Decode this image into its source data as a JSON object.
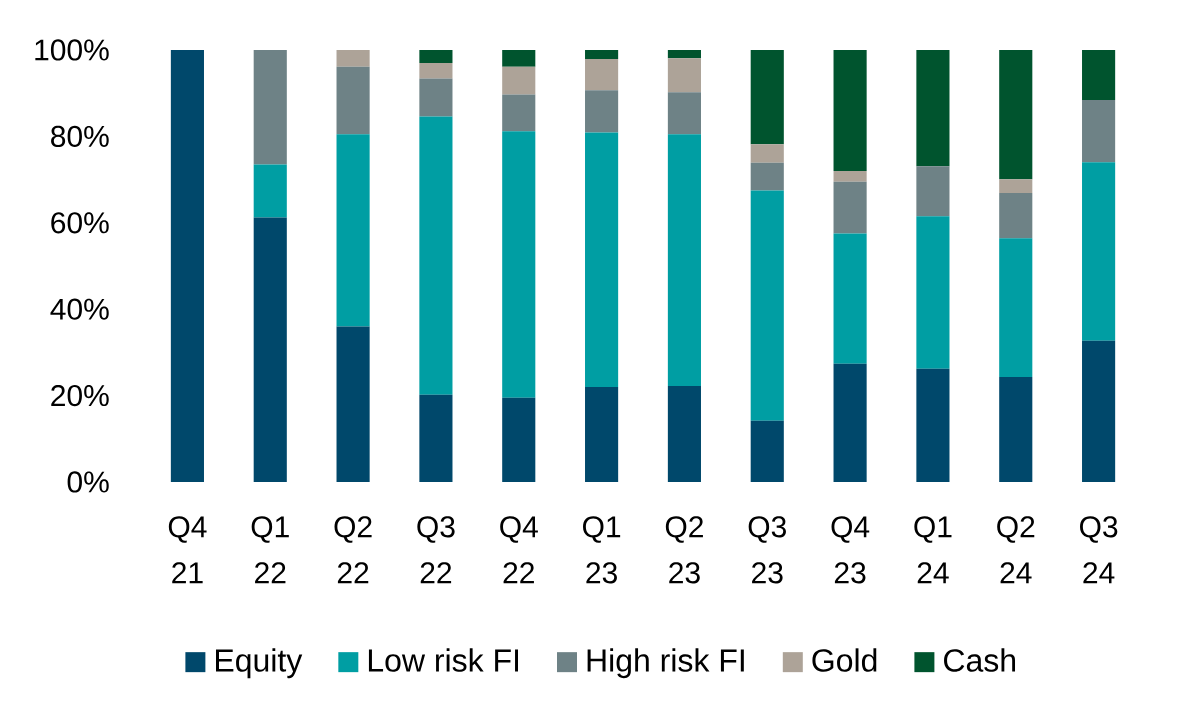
{
  "chart_data": {
    "type": "bar",
    "stacked": true,
    "categories": [
      "Q4 21",
      "Q1 22",
      "Q2 22",
      "Q3 22",
      "Q4 22",
      "Q1 23",
      "Q2 23",
      "Q3 23",
      "Q4 23",
      "Q1 24",
      "Q2 24",
      "Q3 24"
    ],
    "series": [
      {
        "name": "Equity",
        "color": "#00486b",
        "values": [
          100,
          61.2,
          36.0,
          20.2,
          19.5,
          22.0,
          22.2,
          14.2,
          27.4,
          26.2,
          24.3,
          32.7
        ]
      },
      {
        "name": "Low risk FI",
        "color": "#009ea3",
        "values": [
          0,
          12.3,
          44.5,
          64.4,
          61.7,
          58.9,
          58.3,
          53.3,
          30.1,
          35.3,
          32.1,
          41.3
        ]
      },
      {
        "name": "High risk FI",
        "color": "#6e8286",
        "values": [
          0,
          26.5,
          15.6,
          8.8,
          8.5,
          9.8,
          9.7,
          6.4,
          12.0,
          11.6,
          10.5,
          14.4
        ]
      },
      {
        "name": "Gold",
        "color": "#ada398",
        "values": [
          0,
          0,
          3.9,
          3.6,
          6.4,
          7.2,
          7.9,
          4.3,
          2.5,
          0,
          3.2,
          0
        ]
      },
      {
        "name": "Cash",
        "color": "#00542e",
        "values": [
          0,
          0,
          0,
          3.0,
          3.9,
          2.1,
          1.9,
          21.8,
          28.0,
          26.9,
          29.9,
          11.6
        ]
      }
    ],
    "ylim": [
      0,
      100
    ],
    "yticks": [
      {
        "value": 0,
        "label": "0%"
      },
      {
        "value": 20,
        "label": "20%"
      },
      {
        "value": 40,
        "label": "40%"
      },
      {
        "value": 60,
        "label": "60%"
      },
      {
        "value": 80,
        "label": "80%"
      },
      {
        "value": 100,
        "label": "100%"
      }
    ],
    "legend": "bottom"
  }
}
